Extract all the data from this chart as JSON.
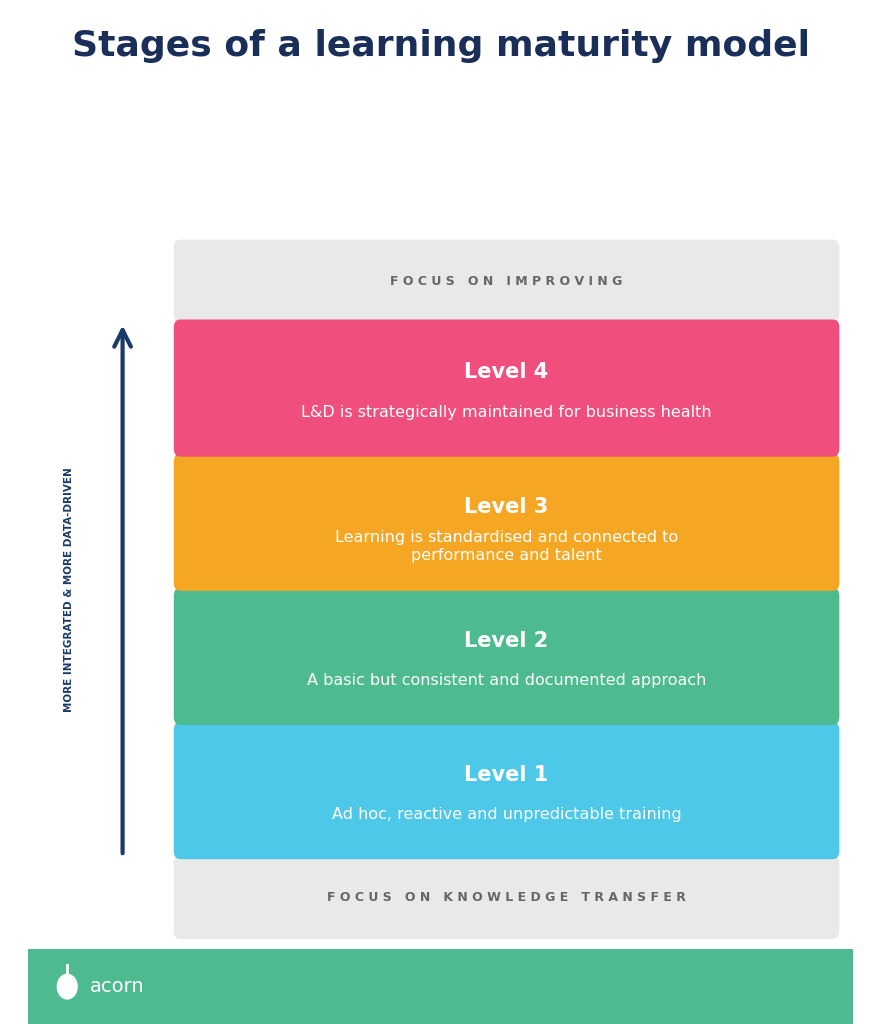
{
  "title": "Stages of a learning maturity model",
  "title_color": "#1a2e5a",
  "title_fontsize": 26,
  "background_color": "#ffffff",
  "footer_color": "#4dba8f",
  "footer_text": "acorn",
  "footer_text_color": "#ffffff",
  "focus_top_text": "F O C U S   O N   I M P R O V I N G",
  "focus_bottom_text": "F O C U S   O N   K N O W L E D G E   T R A N S F E R",
  "focus_bg_color": "#e9e9e9",
  "focus_text_color": "#666666",
  "arrow_color": "#1a3a6b",
  "axis_label": "MORE INTEGRATED & MORE DATA-DRIVEN",
  "axis_label_color": "#1a3a6b",
  "levels": [
    {
      "label": "Level 4",
      "description": "L&D is strategically maintained for business health",
      "color": "#f04e7c",
      "text_color": "#ffffff"
    },
    {
      "label": "Level 3",
      "description": "Learning is standardised and connected to\nperformance and talent",
      "color": "#f5a623",
      "text_color": "#ffffff"
    },
    {
      "label": "Level 2",
      "description": "A basic but consistent and documented approach",
      "color": "#4dba8f",
      "text_color": "#ffffff"
    },
    {
      "label": "Level 1",
      "description": "Ad hoc, reactive and unpredictable training",
      "color": "#4dc8e8",
      "text_color": "#ffffff"
    }
  ]
}
